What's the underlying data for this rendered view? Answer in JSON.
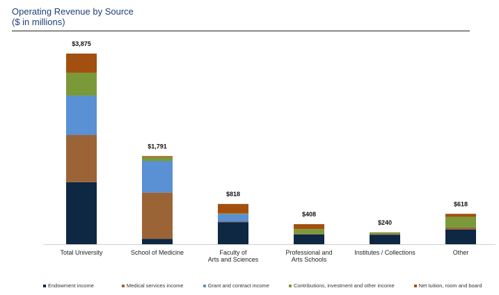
{
  "chart_data": {
    "type": "bar",
    "stacked": true,
    "title": "Operating Revenue by Source",
    "subtitle": "($ in millions)",
    "categories": [
      [
        "Total University"
      ],
      [
        "School of Medicine"
      ],
      [
        "Faculty of",
        "Arts and Sciences"
      ],
      [
        "Professional and",
        "Arts Schools"
      ],
      [
        "Institutes / Collections"
      ],
      [
        "Other"
      ]
    ],
    "totals": [
      "$3,875",
      "$1,791",
      "$818",
      "$408",
      "$240",
      "$618"
    ],
    "total_values": [
      3875,
      1791,
      818,
      408,
      240,
      618
    ],
    "series": [
      {
        "name": "Endowment income",
        "color": "#0e2743",
        "values": [
          1260,
          110,
          450,
          200,
          195,
          300
        ]
      },
      {
        "name": "Medical services income",
        "color": "#9b6436",
        "values": [
          960,
          940,
          10,
          10,
          5,
          40
        ]
      },
      {
        "name": "Grant and contract income",
        "color": "#5a90d4",
        "values": [
          800,
          640,
          150,
          0,
          0,
          0
        ]
      },
      {
        "name": "Contributions, investment and other income",
        "color": "#7a9a3a",
        "values": [
          465,
          80,
          15,
          98,
          30,
          218
        ]
      },
      {
        "name": "Net tuition, room and board",
        "color": "#a24f10",
        "values": [
          390,
          21,
          193,
          100,
          10,
          60
        ]
      }
    ],
    "ylim": [
      0,
      3875
    ],
    "legend_position": "bottom",
    "grid": false
  }
}
